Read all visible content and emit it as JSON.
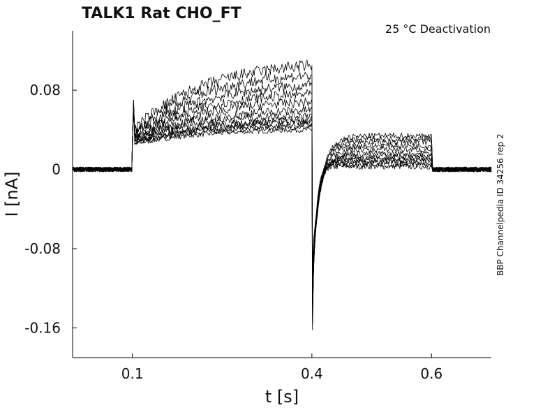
{
  "chart_data": {
    "type": "line",
    "title": "TALK1  Rat  CHO_FT",
    "annotation": "25 °C  Deactivation",
    "side_label": "BBP Channelpedia ID 34256 rep 2",
    "xlabel": "t [s]",
    "ylabel": "I [nA]",
    "xlim": [
      0.0,
      0.7
    ],
    "ylim": [
      -0.19,
      0.14
    ],
    "xticks": [
      0.1,
      0.4,
      0.6
    ],
    "xtick_labels": [
      "0.1",
      "0.4",
      "0.6"
    ],
    "yticks": [
      0.08,
      0,
      -0.08,
      -0.16
    ],
    "ytick_labels": [
      "0.08",
      "0",
      "-0.08",
      "-0.16"
    ],
    "grid": false,
    "line_color": "#000000",
    "protocol": {
      "step_on": 0.1,
      "step_off": 0.4,
      "tail_end": 0.6,
      "tail_peak": -0.162
    },
    "series": [
      {
        "start": 0.025,
        "end": 0.04,
        "tail": 0.003
      },
      {
        "start": 0.026,
        "end": 0.043,
        "tail": 0.005
      },
      {
        "start": 0.027,
        "end": 0.045,
        "tail": 0.007
      },
      {
        "start": 0.028,
        "end": 0.048,
        "tail": 0.009
      },
      {
        "start": 0.029,
        "end": 0.05,
        "tail": 0.011
      },
      {
        "start": 0.03,
        "end": 0.055,
        "tail": 0.013
      },
      {
        "start": 0.031,
        "end": 0.06,
        "tail": 0.016
      },
      {
        "start": 0.032,
        "end": 0.068,
        "tail": 0.02
      },
      {
        "start": 0.033,
        "end": 0.076,
        "tail": 0.024
      },
      {
        "start": 0.034,
        "end": 0.085,
        "tail": 0.028
      },
      {
        "start": 0.036,
        "end": 0.095,
        "tail": 0.031
      },
      {
        "start": 0.038,
        "end": 0.105,
        "tail": 0.034
      }
    ]
  }
}
